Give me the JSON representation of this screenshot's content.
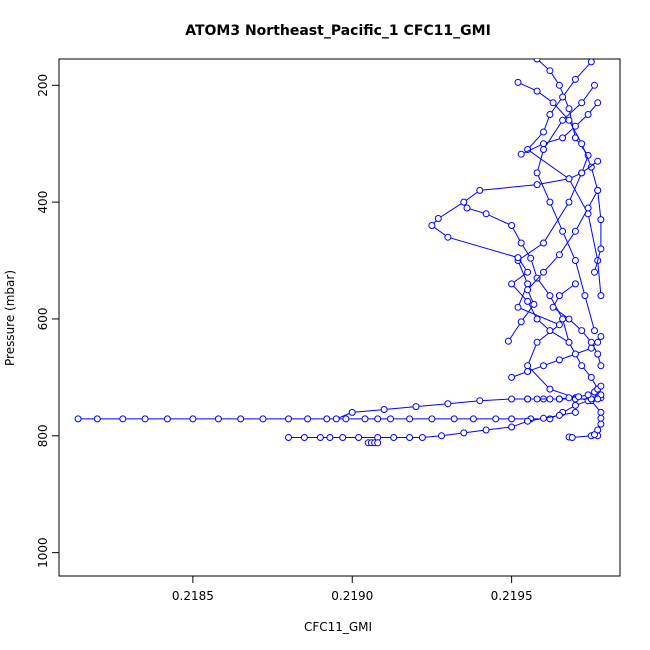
{
  "chart_data": {
    "type": "line",
    "title": "ATOM3 Northeast_Pacific_1 CFC11_GMI",
    "xlabel": "CFC11_GMI",
    "ylabel": "Pressure (mbar)",
    "xlim": [
      0.21808,
      0.21984
    ],
    "ylim": [
      1040,
      155
    ],
    "y_reversed": true,
    "x_ticks": [
      "0.2185",
      "0.2190",
      "0.2195"
    ],
    "x_tick_values": [
      0.2185,
      0.219,
      0.2195
    ],
    "y_ticks": [
      "200",
      "400",
      "600",
      "800",
      "1000"
    ],
    "y_tick_values": [
      200,
      400,
      600,
      800,
      1000
    ],
    "grid": false,
    "legend": "none",
    "marker": "open-circle",
    "series_color": "#0000ff",
    "series": [
      {
        "x": [
          0.21958,
          0.21962,
          0.21965,
          0.21968,
          0.2197,
          0.21974,
          0.21972,
          0.21968,
          0.2196,
          0.21952,
          0.21955,
          0.21952,
          0.21965,
          0.21958,
          0.21955,
          0.21962,
          0.2197,
          0.21975,
          0.21978,
          0.21978,
          0.21977
        ],
        "y": [
          155,
          175,
          200,
          240,
          290,
          320,
          350,
          400,
          470,
          500,
          540,
          580,
          610,
          640,
          680,
          720,
          735,
          740,
          760,
          770,
          800
        ]
      },
      {
        "x": [
          0.21975,
          0.2197,
          0.21966,
          0.21962,
          0.2196,
          0.21955,
          0.21968,
          0.21974,
          0.21977,
          0.21978
        ],
        "y": [
          160,
          190,
          220,
          250,
          280,
          310,
          360,
          420,
          500,
          560
        ]
      },
      {
        "x": [
          0.21952,
          0.21958,
          0.21963,
          0.21968,
          0.21972,
          0.21975,
          0.21977,
          0.21978,
          0.21978,
          0.21976
        ],
        "y": [
          195,
          210,
          230,
          260,
          300,
          340,
          380,
          430,
          480,
          520
        ]
      },
      {
        "x": [
          0.21953,
          0.2196,
          0.21966,
          0.2197,
          0.21974,
          0.21977
        ],
        "y": [
          318,
          300,
          290,
          270,
          250,
          230
        ]
      },
      {
        "x": [
          0.21977,
          0.21972,
          0.21968,
          0.21958,
          0.2194,
          0.21935,
          0.21927,
          0.21925,
          0.2193,
          0.21952,
          0.21955,
          0.2195,
          0.21955,
          0.21958,
          0.21962,
          0.21968
        ],
        "y": [
          330,
          350,
          360,
          370,
          380,
          400,
          428,
          440,
          460,
          495,
          520,
          540,
          570,
          600,
          620,
          640
        ]
      },
      {
        "x": [
          0.21936,
          0.21942,
          0.2195,
          0.21953,
          0.21956,
          0.21958,
          0.21962,
          0.21966,
          0.21968,
          0.21972,
          0.21975,
          0.21977,
          0.21978
        ],
        "y": [
          410,
          420,
          440,
          470,
          496,
          530,
          560,
          600,
          640,
          680,
          700,
          720,
          735
        ]
      },
      {
        "x": [
          0.21949,
          0.21953,
          0.21957,
          0.21955,
          0.2196,
          0.21965,
          0.2197,
          0.21974,
          0.21977
        ],
        "y": [
          638,
          605,
          575,
          550,
          520,
          490,
          450,
          410,
          380
        ]
      },
      {
        "x": [
          0.2197,
          0.21965,
          0.21963,
          0.21968,
          0.21972,
          0.21975,
          0.21977,
          0.21978
        ],
        "y": [
          540,
          560,
          580,
          600,
          620,
          640,
          660,
          680
        ]
      },
      {
        "x": [
          0.21976,
          0.21972,
          0.21966,
          0.2196,
          0.21958,
          0.21962,
          0.21966,
          0.2197,
          0.21973,
          0.21976
        ],
        "y": [
          200,
          230,
          260,
          310,
          350,
          400,
          450,
          500,
          560,
          620
        ]
      },
      {
        "x": [
          0.2195,
          0.21955,
          0.2196,
          0.21965,
          0.2197,
          0.21975,
          0.21977,
          0.21978
        ],
        "y": [
          700,
          690,
          680,
          670,
          660,
          650,
          640,
          630
        ]
      },
      {
        "x": [
          0.21814,
          0.2182,
          0.21828,
          0.21835,
          0.21842,
          0.2185,
          0.21858,
          0.21865,
          0.21872,
          0.2188,
          0.21886,
          0.21892,
          0.21898,
          0.21904,
          0.21908,
          0.21912,
          0.21918,
          0.21925,
          0.21932,
          0.21938,
          0.21945,
          0.2195,
          0.21956,
          0.21962,
          0.21966,
          0.2197,
          0.21974,
          0.21977,
          0.21978
        ],
        "y": [
          771,
          771,
          771,
          771,
          771,
          771,
          771,
          771,
          771,
          771,
          771,
          771,
          771,
          771,
          771,
          771,
          771,
          771,
          771,
          771,
          771,
          771,
          771,
          771,
          760,
          748,
          740,
          735,
          730
        ]
      },
      {
        "x": [
          0.21895,
          0.219,
          0.2191,
          0.2192,
          0.2193,
          0.2194,
          0.2195,
          0.21955,
          0.2196,
          0.21965,
          0.2197,
          0.21975,
          0.21977
        ],
        "y": [
          771,
          760,
          755,
          750,
          745,
          740,
          737,
          737,
          737,
          737,
          737,
          737,
          737
        ]
      },
      {
        "x": [
          0.2188,
          0.21885,
          0.2189,
          0.21893,
          0.21897,
          0.21902,
          0.21908,
          0.21913,
          0.21918,
          0.21922,
          0.21928,
          0.21935,
          0.21942,
          0.2195,
          0.21955,
          0.2196,
          0.21965,
          0.2197
        ],
        "y": [
          803,
          803,
          803,
          803,
          803,
          803,
          803,
          803,
          803,
          803,
          800,
          795,
          790,
          785,
          775,
          770,
          765,
          760
        ]
      },
      {
        "x": [
          0.21905,
          0.21906,
          0.21907,
          0.21908
        ],
        "y": [
          812,
          812,
          812,
          812
        ]
      },
      {
        "x": [
          0.21968,
          0.21969,
          0.21975,
          0.21976,
          0.21977,
          0.21978
        ],
        "y": [
          802,
          803,
          800,
          798,
          790,
          780
        ]
      },
      {
        "x": [
          0.21955,
          0.21958,
          0.21962,
          0.21965,
          0.21968,
          0.21971,
          0.21974,
          0.21976,
          0.21977,
          0.21978
        ],
        "y": [
          737,
          737,
          737,
          737,
          735,
          733,
          730,
          725,
          720,
          715
        ]
      }
    ]
  }
}
